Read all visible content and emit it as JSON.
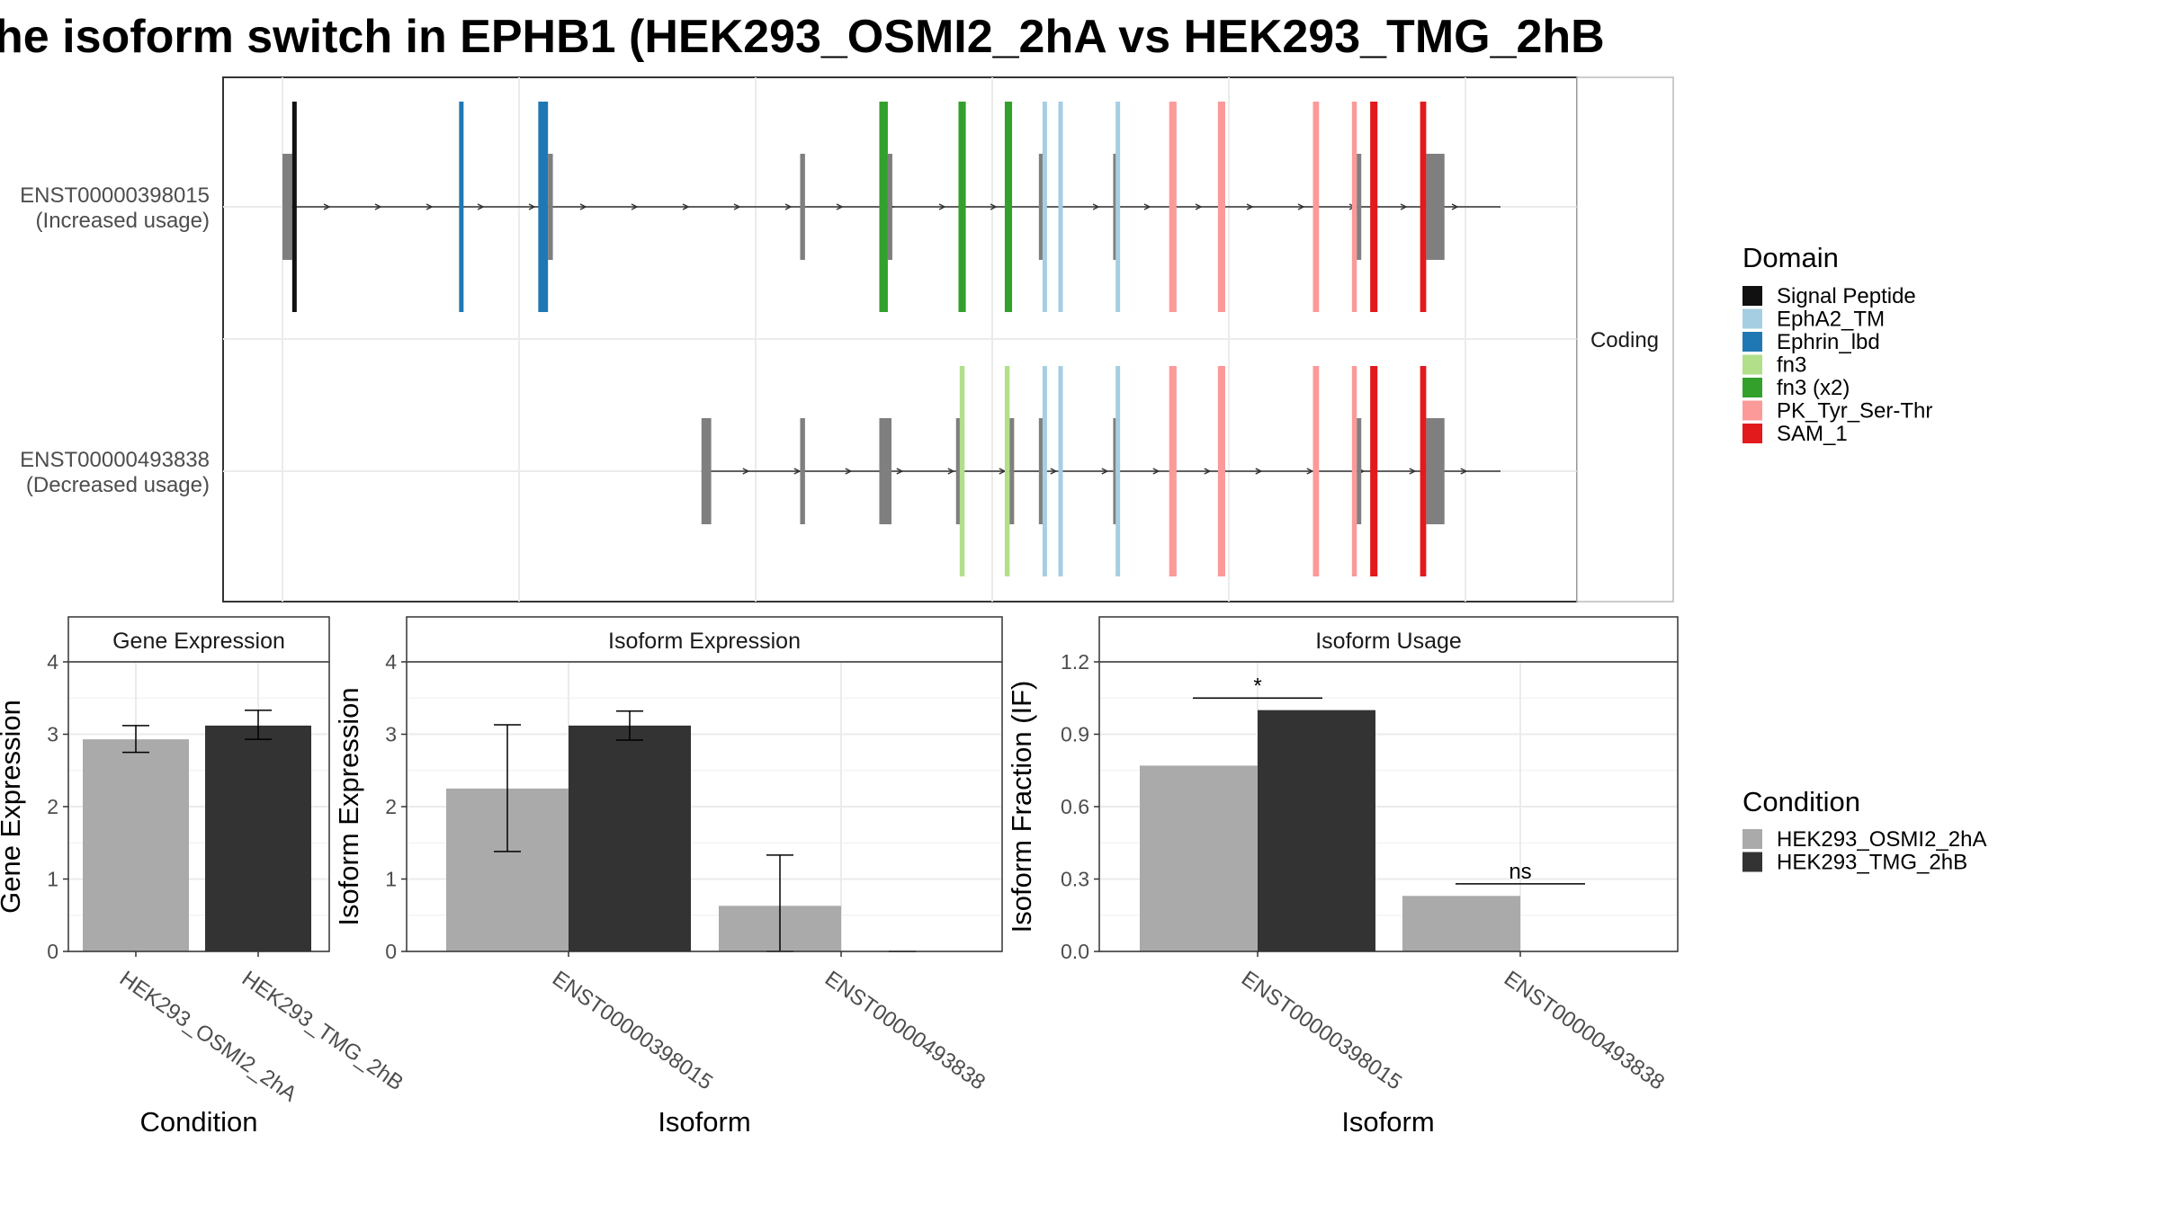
{
  "title": "he isoform switch in EPHB1 (HEK293_OSMI2_2hA vs HEK293_TMG_2hB",
  "colors": {
    "cond_a": "#aaaaaa",
    "cond_b": "#333333",
    "utr": "#7f7f7f",
    "Signal Peptide": "#111111",
    "EphA2_TM": "#a6cee3",
    "Ephrin_lbd": "#1f78b4",
    "fn3": "#b2df8a",
    "fn3 (x2)": "#33a02c",
    "PK_Tyr_Ser-Thr": "#fb9a99",
    "SAM_1": "#e31a1c"
  },
  "structure": {
    "strip_label": "Coding",
    "transcripts": [
      {
        "id": "ENST00000398015",
        "label": "ENST00000398015",
        "sublabel": "(Increased usage)",
        "span": [
          0.0,
          1.0
        ],
        "features": [
          {
            "pos": 0.0,
            "w": 0.008,
            "kind": "utr"
          },
          {
            "pos": 0.008,
            "w": 0.003,
            "kind": "Signal Peptide"
          },
          {
            "pos": 0.145,
            "w": 0.003,
            "kind": "Ephrin_lbd"
          },
          {
            "pos": 0.21,
            "w": 0.008,
            "kind": "Ephrin_lbd"
          },
          {
            "pos": 0.218,
            "w": 0.004,
            "kind": "utr"
          },
          {
            "pos": 0.425,
            "w": 0.004,
            "kind": "utr"
          },
          {
            "pos": 0.49,
            "w": 0.007,
            "kind": "fn3 (x2)"
          },
          {
            "pos": 0.497,
            "w": 0.003,
            "kind": "utr"
          },
          {
            "pos": 0.555,
            "w": 0.006,
            "kind": "fn3 (x2)"
          },
          {
            "pos": 0.593,
            "w": 0.006,
            "kind": "fn3 (x2)"
          },
          {
            "pos": 0.621,
            "w": 0.003,
            "kind": "utr"
          },
          {
            "pos": 0.624,
            "w": 0.002,
            "kind": "EphA2_TM"
          },
          {
            "pos": 0.637,
            "w": 0.003,
            "kind": "EphA2_TM"
          },
          {
            "pos": 0.682,
            "w": 0.002,
            "kind": "utr"
          },
          {
            "pos": 0.684,
            "w": 0.003,
            "kind": "EphA2_TM"
          },
          {
            "pos": 0.728,
            "w": 0.006,
            "kind": "PK_Tyr_Ser-Thr"
          },
          {
            "pos": 0.768,
            "w": 0.006,
            "kind": "PK_Tyr_Ser-Thr"
          },
          {
            "pos": 0.846,
            "w": 0.005,
            "kind": "PK_Tyr_Ser-Thr"
          },
          {
            "pos": 0.878,
            "w": 0.004,
            "kind": "PK_Tyr_Ser-Thr"
          },
          {
            "pos": 0.882,
            "w": 0.003,
            "kind": "utr"
          },
          {
            "pos": 0.893,
            "w": 0.006,
            "kind": "SAM_1"
          },
          {
            "pos": 0.934,
            "w": 0.005,
            "kind": "SAM_1"
          },
          {
            "pos": 0.939,
            "w": 0.015,
            "kind": "utr"
          }
        ]
      },
      {
        "id": "ENST00000493838",
        "label": "ENST00000493838",
        "sublabel": "(Decreased usage)",
        "span": [
          0.344,
          1.0
        ],
        "features": [
          {
            "pos": 0.344,
            "w": 0.008,
            "kind": "utr"
          },
          {
            "pos": 0.425,
            "w": 0.004,
            "kind": "utr"
          },
          {
            "pos": 0.49,
            "w": 0.01,
            "kind": "utr"
          },
          {
            "pos": 0.553,
            "w": 0.003,
            "kind": "utr"
          },
          {
            "pos": 0.556,
            "w": 0.004,
            "kind": "fn3"
          },
          {
            "pos": 0.593,
            "w": 0.004,
            "kind": "fn3"
          },
          {
            "pos": 0.597,
            "w": 0.003,
            "kind": "utr"
          },
          {
            "pos": 0.621,
            "w": 0.003,
            "kind": "utr"
          },
          {
            "pos": 0.624,
            "w": 0.002,
            "kind": "EphA2_TM"
          },
          {
            "pos": 0.637,
            "w": 0.003,
            "kind": "EphA2_TM"
          },
          {
            "pos": 0.682,
            "w": 0.002,
            "kind": "utr"
          },
          {
            "pos": 0.684,
            "w": 0.003,
            "kind": "EphA2_TM"
          },
          {
            "pos": 0.728,
            "w": 0.006,
            "kind": "PK_Tyr_Ser-Thr"
          },
          {
            "pos": 0.768,
            "w": 0.006,
            "kind": "PK_Tyr_Ser-Thr"
          },
          {
            "pos": 0.846,
            "w": 0.005,
            "kind": "PK_Tyr_Ser-Thr"
          },
          {
            "pos": 0.878,
            "w": 0.004,
            "kind": "PK_Tyr_Ser-Thr"
          },
          {
            "pos": 0.882,
            "w": 0.003,
            "kind": "utr"
          },
          {
            "pos": 0.893,
            "w": 0.006,
            "kind": "SAM_1"
          },
          {
            "pos": 0.934,
            "w": 0.005,
            "kind": "SAM_1"
          },
          {
            "pos": 0.939,
            "w": 0.015,
            "kind": "utr"
          }
        ]
      }
    ]
  },
  "legend": {
    "domain_title": "Domain",
    "domains": [
      "Signal Peptide",
      "EphA2_TM",
      "Ephrin_lbd",
      "fn3",
      "fn3 (x2)",
      "PK_Tyr_Ser-Thr",
      "SAM_1"
    ],
    "condition_title": "Condition",
    "conditions": [
      "HEK293_OSMI2_2hA",
      "HEK293_TMG_2hB"
    ]
  },
  "chart_data": [
    {
      "type": "bar",
      "title": "Gene Expression",
      "xlabel": "Condition",
      "ylabel": "Gene Expression",
      "ylim": [
        0,
        4
      ],
      "yticks": [
        0,
        1,
        2,
        3,
        4
      ],
      "categories": [
        "HEK293_OSMI2_2hA",
        "HEK293_TMG_2hB"
      ],
      "series": [
        {
          "name": "HEK293_OSMI2_2hA",
          "values": [
            2.93,
            null
          ],
          "err_low": [
            2.75,
            null
          ],
          "err_high": [
            3.12,
            null
          ]
        },
        {
          "name": "HEK293_TMG_2hB",
          "values": [
            null,
            3.12
          ],
          "err_low": [
            null,
            2.93
          ],
          "err_high": [
            null,
            3.33
          ]
        }
      ],
      "grid": true
    },
    {
      "type": "bar",
      "title": "Isoform Expression",
      "xlabel": "Isoform",
      "ylabel": "Isoform Expression",
      "ylim": [
        0,
        4
      ],
      "yticks": [
        0,
        1,
        2,
        3,
        4
      ],
      "categories": [
        "ENST00000398015",
        "ENST00000493838"
      ],
      "series": [
        {
          "name": "HEK293_OSMI2_2hA",
          "values": [
            2.25,
            0.63
          ],
          "err_low": [
            1.38,
            0.0
          ],
          "err_high": [
            3.13,
            1.33
          ]
        },
        {
          "name": "HEK293_TMG_2hB",
          "values": [
            3.12,
            0.0
          ],
          "err_low": [
            2.92,
            0.0
          ],
          "err_high": [
            3.32,
            0.0
          ]
        }
      ],
      "grid": true
    },
    {
      "type": "bar",
      "title": "Isoform Usage",
      "xlabel": "Isoform",
      "ylabel": "Isoform Fraction (IF)",
      "ylim": [
        0,
        1.2
      ],
      "yticks": [
        0.0,
        0.3,
        0.6,
        0.9,
        1.2
      ],
      "ytick_labels": [
        "0.0",
        "0.3",
        "0.6",
        "0.9",
        "1.2"
      ],
      "categories": [
        "ENST00000398015",
        "ENST00000493838"
      ],
      "series": [
        {
          "name": "HEK293_OSMI2_2hA",
          "values": [
            0.77,
            0.23
          ]
        },
        {
          "name": "HEK293_TMG_2hB",
          "values": [
            1.0,
            0.0
          ]
        }
      ],
      "significance": [
        {
          "category": "ENST00000398015",
          "label": "*",
          "y": 1.05
        },
        {
          "category": "ENST00000493838",
          "label": "ns",
          "y": 0.28
        }
      ],
      "grid": true
    }
  ]
}
